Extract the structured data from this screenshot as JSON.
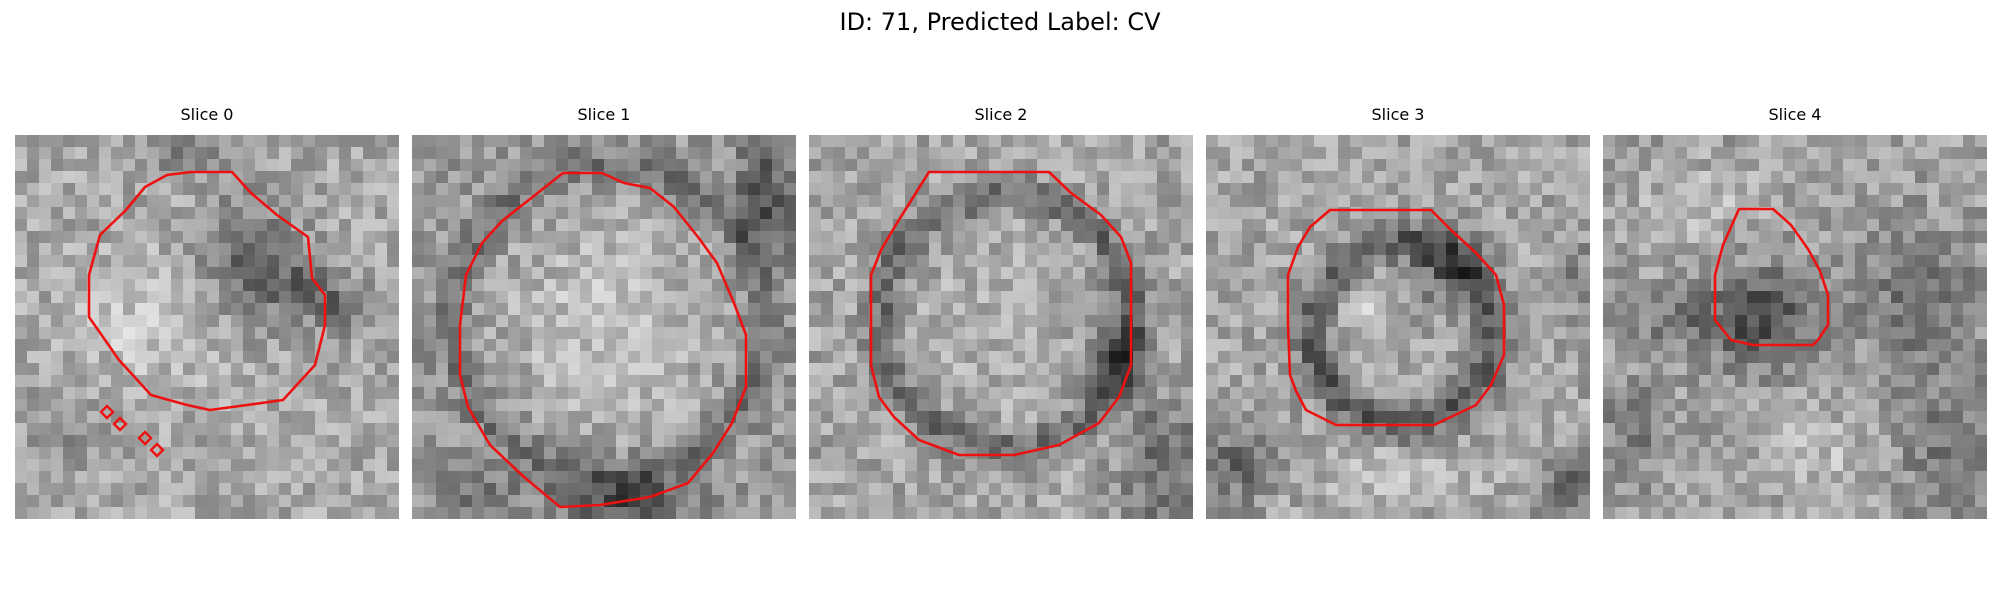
{
  "figure": {
    "title": "ID: 71, Predicted Label: CV"
  },
  "slices": [
    {
      "title": "Slice 0"
    },
    {
      "title": "Slice 1"
    },
    {
      "title": "Slice 2"
    },
    {
      "title": "Slice 3"
    },
    {
      "title": "Slice 4"
    }
  ],
  "colors": {
    "contour": "#ee1111",
    "background": "#ffffff"
  }
}
